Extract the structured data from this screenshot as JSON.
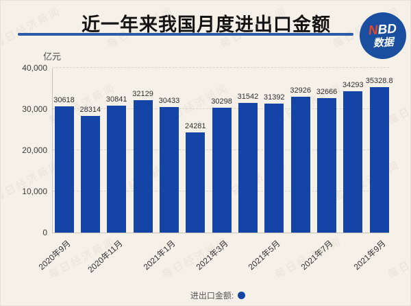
{
  "header": {
    "title": "近一年来我国月度进出口金额",
    "logo": {
      "n": "N",
      "bd": "BD",
      "sub": "数据"
    }
  },
  "watermark": "每日经济新闻",
  "legend": {
    "label": "进出口金额:"
  },
  "colors": {
    "background": "#f5f1e9",
    "bar": "#1445a6",
    "title_underline": "#2b5ba6",
    "logo_bg": "#1a4fa0",
    "logo_n": "#e8452c",
    "legend_dot": "#1445a6"
  },
  "chart_data": {
    "type": "bar",
    "title": "近一年来我国月度进出口金额",
    "unit_label": "亿元",
    "categories": [
      "2020年9月",
      "",
      "2020年11月",
      "",
      "2021年1月",
      "",
      "2021年3月",
      "",
      "2021年5月",
      "",
      "2021年7月",
      "",
      "2021年9月"
    ],
    "values": [
      30618,
      28314,
      30841,
      32129,
      30433,
      24281,
      30298,
      31542,
      31392,
      32926,
      32666,
      34293,
      35328.8
    ],
    "bar_labels": [
      "30618",
      "28314",
      "30841",
      "32129",
      "30433",
      "24281",
      "30298",
      "31542",
      "31392",
      "32926",
      "32666",
      "34293",
      "35328.8"
    ],
    "ylabel": "亿元",
    "xlabel": "",
    "ylim": [
      0,
      40000
    ],
    "yticks": [
      0,
      10000,
      20000,
      30000,
      40000
    ],
    "ytick_labels": [
      "0",
      "10,000",
      "20,000",
      "30,000",
      "40,000"
    ],
    "grid": "dashed-horizontal",
    "legend_entries": [
      {
        "name": "进出口金额",
        "color": "#1445a6"
      }
    ],
    "legend_position": "bottom"
  }
}
